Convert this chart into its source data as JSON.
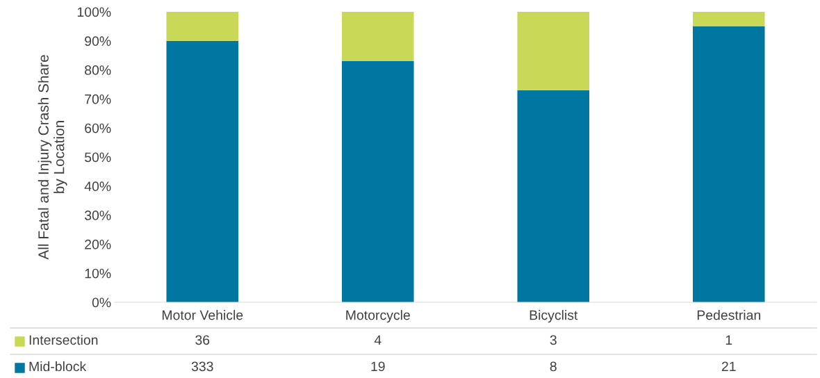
{
  "chart_data": {
    "type": "bar",
    "stacked": true,
    "ylabel": "All Fatal and Injury Crash Share\nby Location",
    "categories": [
      "Motor Vehicle",
      "Motorcycle",
      "Bicyclist",
      "Pedestrian"
    ],
    "series": [
      {
        "name": "Mid-block",
        "color": "#0077a0",
        "values": [
          90,
          83,
          73,
          95
        ]
      },
      {
        "name": "Intersection",
        "color": "#c9d957",
        "values": [
          10,
          17,
          27,
          5
        ]
      }
    ],
    "annotations": [
      "36",
      "4",
      "3",
      "1",
      "333",
      "19",
      "8",
      "21"
    ],
    "ylim": [
      0,
      100
    ],
    "yticks": [
      {
        "value": 0,
        "label": "0%"
      },
      {
        "value": 10,
        "label": "10%"
      },
      {
        "value": 20,
        "label": "20%"
      },
      {
        "value": 30,
        "label": "30%"
      },
      {
        "value": 40,
        "label": "40%"
      },
      {
        "value": 50,
        "label": "50%"
      },
      {
        "value": 60,
        "label": "60%"
      },
      {
        "value": 70,
        "label": "70%"
      },
      {
        "value": 80,
        "label": "80%"
      },
      {
        "value": 90,
        "label": "90%"
      },
      {
        "value": 100,
        "label": "100%"
      }
    ],
    "grid": false,
    "legend": "bottom"
  }
}
